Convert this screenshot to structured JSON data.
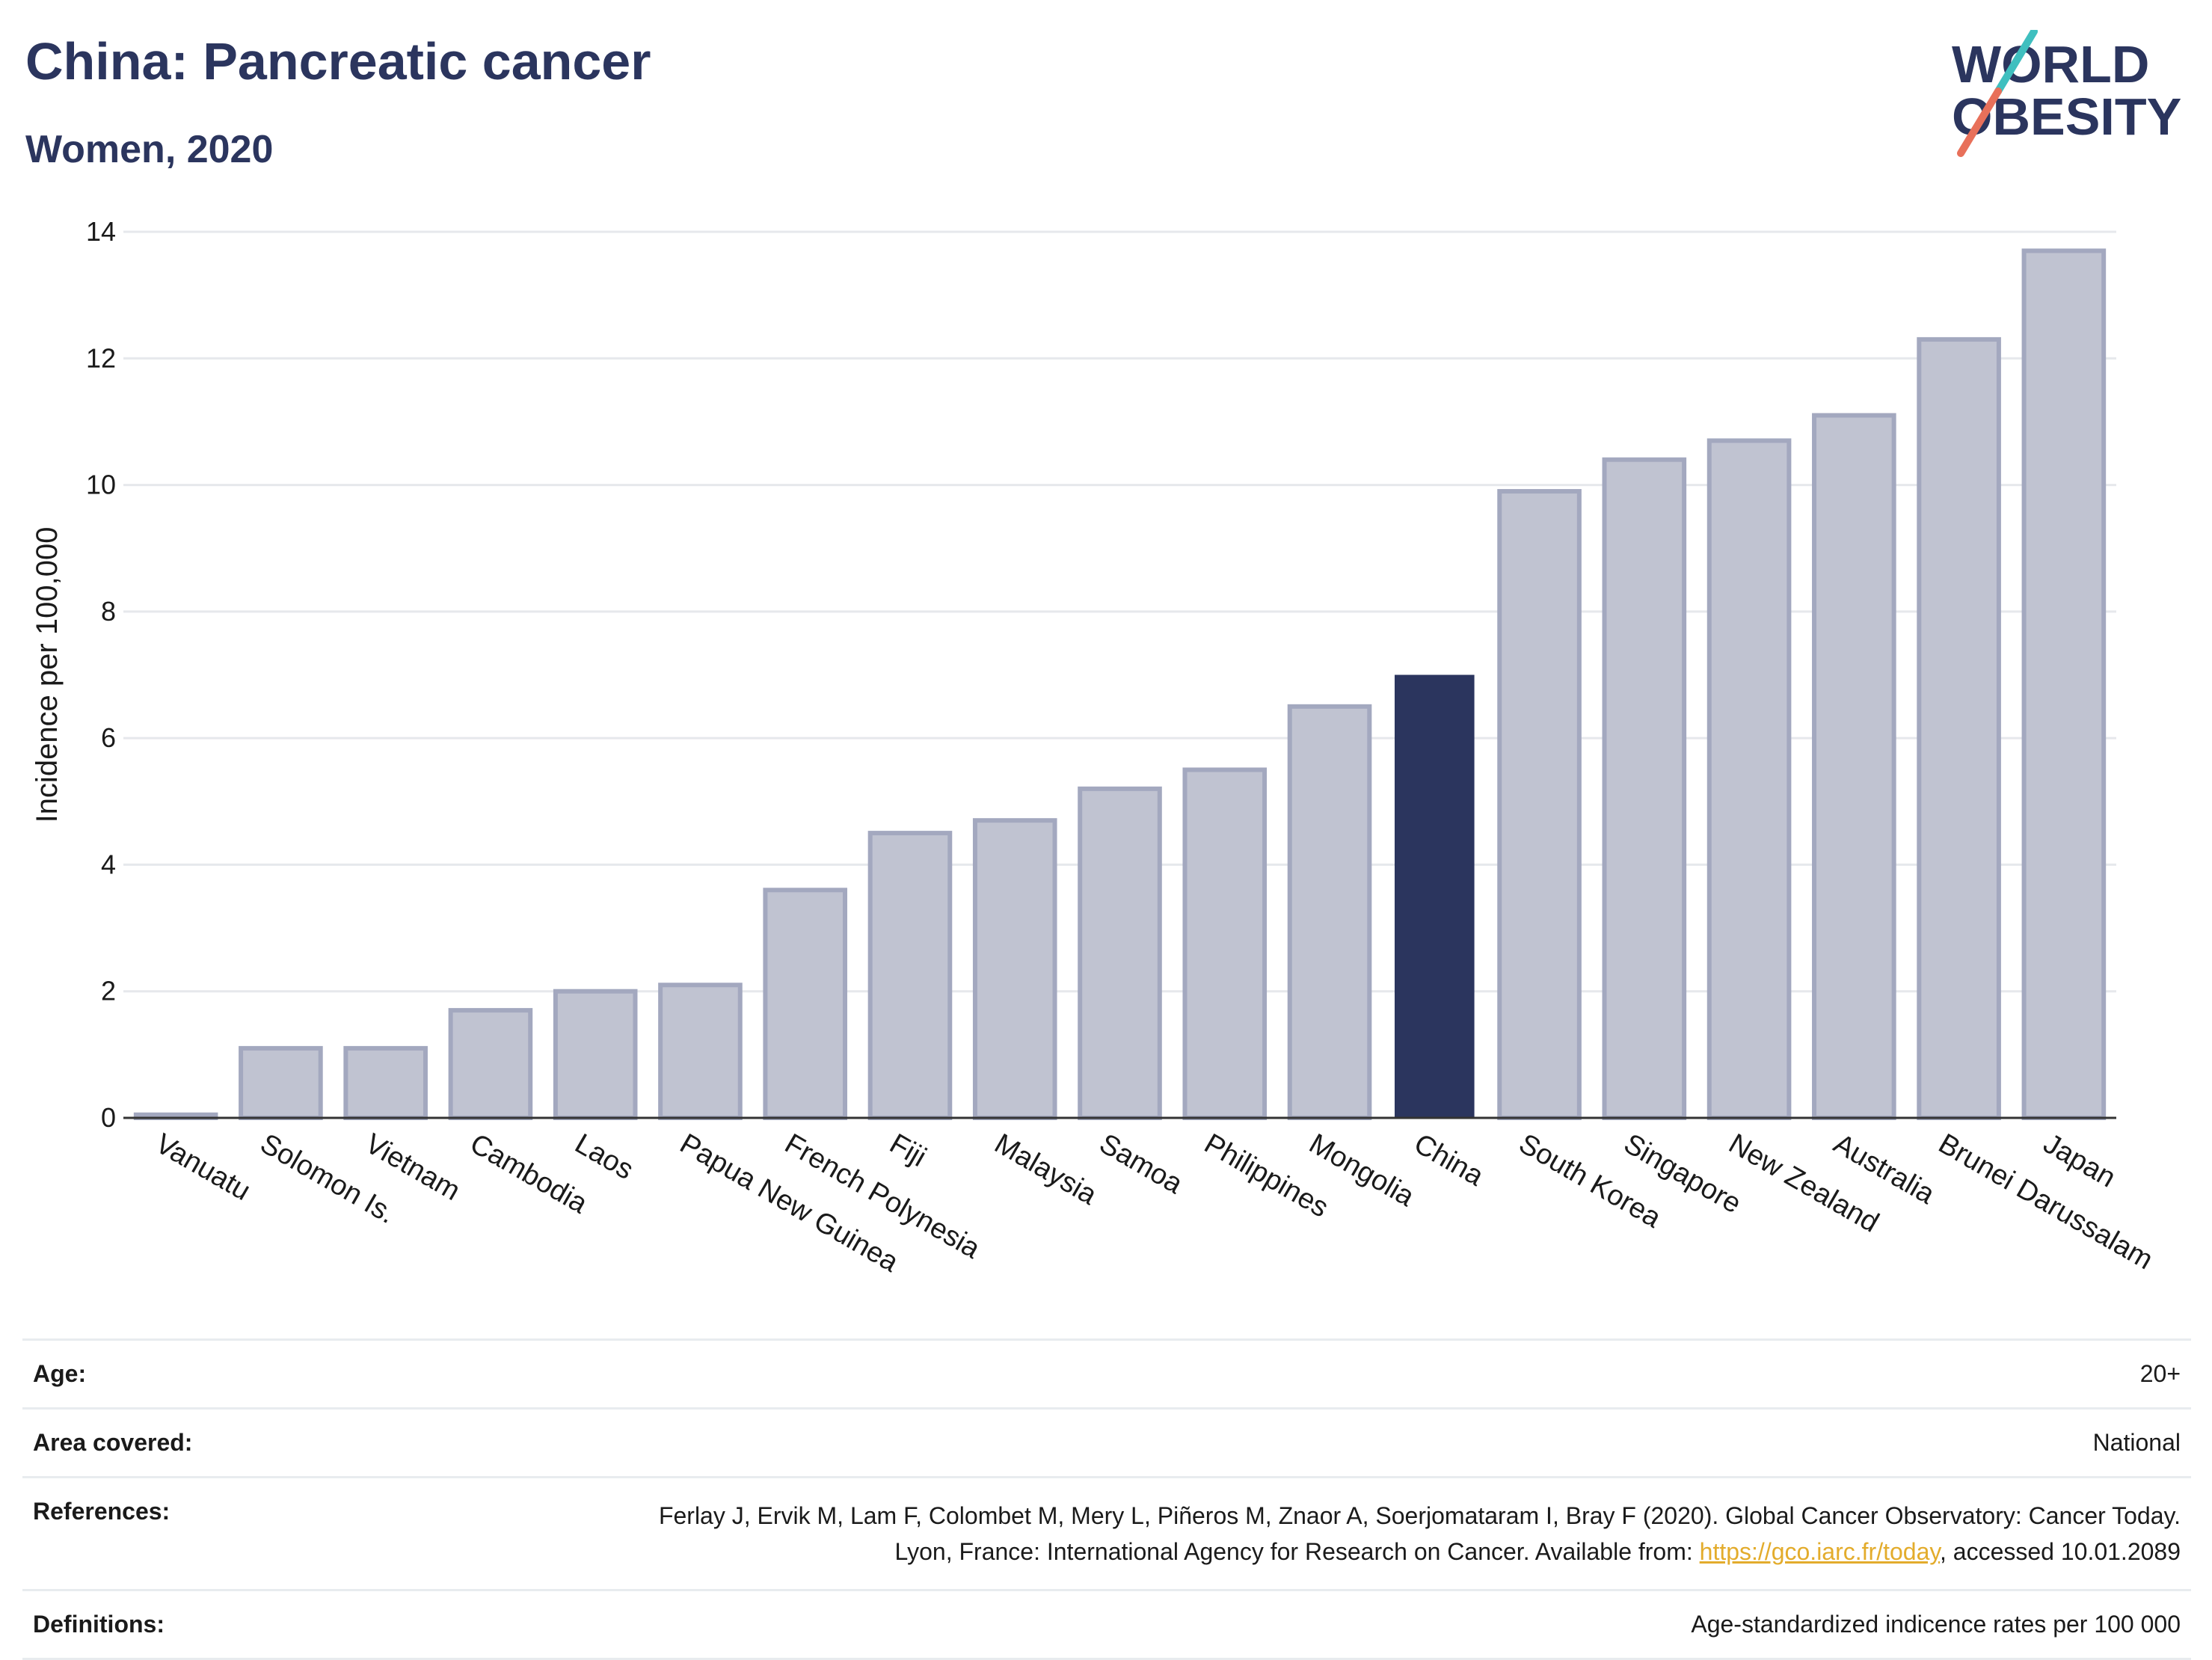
{
  "header": {
    "title": "China: Pancreatic cancer",
    "subtitle": "Women, 2020"
  },
  "logo": {
    "line1": "WORLD",
    "line2": "OBESITY",
    "colors": {
      "text": "#2b355e",
      "slash_teal": "#3fbfbf",
      "slash_red": "#e8705a"
    }
  },
  "colors": {
    "bar": "#c0c3d1",
    "bar_border": "#a3a8bf",
    "highlight": "#2b355e",
    "grid": "#e6e8ec",
    "link": "#e3ac2c"
  },
  "chart_data": {
    "type": "bar",
    "ylabel": "Incidence per 100,000",
    "ylim": [
      0,
      14
    ],
    "yticks": [
      0,
      2,
      4,
      6,
      8,
      10,
      12,
      14
    ],
    "grid": true,
    "highlight": "China",
    "categories": [
      "Vanuatu",
      "Solomon Is.",
      "Vietnam",
      "Cambodia",
      "Laos",
      "Papua New Guinea",
      "French Polynesia",
      "Fiji",
      "Malaysia",
      "Samoa",
      "Philippines",
      "Mongolia",
      "China",
      "South Korea",
      "Singapore",
      "New Zealand",
      "Australia",
      "Brunei Darussalam",
      "Japan"
    ],
    "values": [
      0.05,
      1.1,
      1.1,
      1.7,
      2.0,
      2.1,
      3.6,
      4.5,
      4.7,
      5.2,
      5.5,
      6.5,
      7.0,
      9.9,
      10.4,
      10.7,
      11.1,
      12.3,
      13.7
    ]
  },
  "footer": {
    "age_label": "Age:",
    "age_value": "20+",
    "area_label": "Area covered:",
    "area_value": "National",
    "references_label": "References:",
    "references_text": "Ferlay J, Ervik M, Lam F, Colombet M, Mery L, Piñeros M, Znaor A, Soerjomataram I, Bray F (2020). Global Cancer Observatory: Cancer Today. Lyon, France: International Agency for Research on Cancer. Available from: ",
    "references_link": "https://gco.iarc.fr/today",
    "references_suffix": ", accessed 10.01.2089",
    "definitions_label": "Definitions:",
    "definitions_value": "Age-standardized indicence rates per 100 000"
  }
}
